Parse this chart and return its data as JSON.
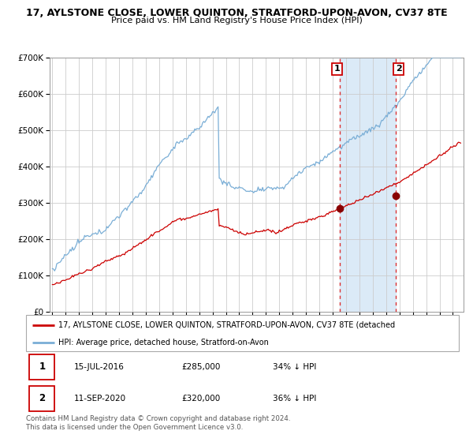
{
  "title": "17, AYLSTONE CLOSE, LOWER QUINTON, STRATFORD-UPON-AVON, CV37 8TE",
  "subtitle": "Price paid vs. HM Land Registry's House Price Index (HPI)",
  "red_label": "17, AYLSTONE CLOSE, LOWER QUINTON, STRATFORD-UPON-AVON, CV37 8TE (detached",
  "blue_label": "HPI: Average price, detached house, Stratford-on-Avon",
  "annotation1_date": "15-JUL-2016",
  "annotation1_price": "£285,000",
  "annotation1_hpi": "34% ↓ HPI",
  "annotation2_date": "11-SEP-2020",
  "annotation2_price": "£320,000",
  "annotation2_hpi": "36% ↓ HPI",
  "footer": "Contains HM Land Registry data © Crown copyright and database right 2024.\nThis data is licensed under the Open Government Licence v3.0.",
  "sale1_year": 2016.54,
  "sale1_value": 285000,
  "sale2_year": 2020.7,
  "sale2_value": 320000,
  "ylim": [
    0,
    700000
  ],
  "xlim_start": 1994.8,
  "xlim_end": 2025.8,
  "red_color": "#cc0000",
  "blue_color": "#7aaed6",
  "shade_color": "#dbeaf7",
  "grid_color": "#cccccc",
  "background_color": "#ffffff"
}
